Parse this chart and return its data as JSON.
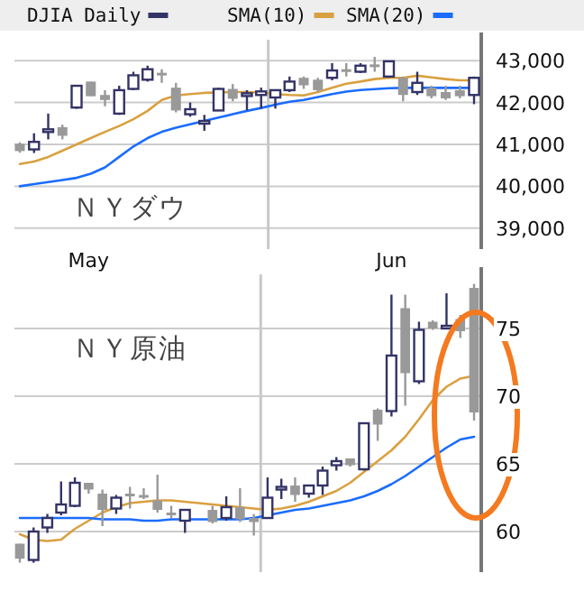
{
  "chart_data": [
    {
      "type": "candlestick",
      "title": "ＮＹダウ",
      "categories": [
        null,
        null,
        null,
        null,
        null,
        null,
        null,
        null,
        null,
        null,
        null,
        null,
        null,
        null,
        null,
        null,
        null,
        null,
        null,
        null,
        null,
        null,
        null,
        null,
        null,
        null,
        null,
        null,
        null,
        null,
        null,
        null,
        null
      ],
      "series": [
        {
          "type": "candlestick",
          "name": "DJIA Daily",
          "colors": [
            "#999999",
            "#333366",
            "#333366",
            "#999999",
            "#333366",
            "#999999",
            "#999999",
            "#333366",
            "#333366",
            "#333366",
            "#999999",
            "#999999",
            "#333366",
            "#333366",
            "#333366",
            "#999999",
            "#333366",
            "#333366",
            "#333366",
            "#333366",
            "#999999",
            "#999999",
            "#333366",
            "#999999",
            "#333366",
            "#999999",
            "#333366",
            "#999999",
            "#333366",
            "#999999",
            "#999999",
            "#999999",
            "#333366"
          ],
          "ohlc": [
            [
              41015,
              41050,
              40800,
              40840
            ],
            [
              40880,
              41265,
              40795,
              41060
            ],
            [
              41330,
              41735,
              41120,
              41360
            ],
            [
              41410,
              41470,
              41120,
              41205
            ],
            [
              41880,
              42400,
              41850,
              42400
            ],
            [
              42500,
              42500,
              42150,
              42150
            ],
            [
              42180,
              42295,
              41910,
              42060
            ],
            [
              41735,
              42400,
              41705,
              42295
            ],
            [
              42325,
              42735,
              42295,
              42650
            ],
            [
              42545,
              42880,
              42500,
              42795
            ],
            [
              42710,
              42795,
              42470,
              42690
            ],
            [
              42355,
              42470,
              41765,
              41810
            ],
            [
              41720,
              42000,
              41660,
              41840
            ],
            [
              41530,
              41705,
              41325,
              41560
            ],
            [
              41810,
              42355,
              41795,
              42325
            ],
            [
              42325,
              42440,
              42030,
              42090
            ],
            [
              42180,
              42295,
              41810,
              42220
            ],
            [
              42180,
              42355,
              41855,
              42265
            ],
            [
              42120,
              42295,
              41855,
              42295
            ],
            [
              42295,
              42620,
              42250,
              42500
            ],
            [
              42590,
              42620,
              42325,
              42410
            ],
            [
              42545,
              42590,
              42250,
              42295
            ],
            [
              42590,
              42940,
              42530,
              42765
            ],
            [
              42795,
              42940,
              42620,
              42765
            ],
            [
              42735,
              42940,
              42705,
              42880
            ],
            [
              42910,
              43090,
              42735,
              42880
            ],
            [
              42620,
              42985,
              42590,
              42985
            ],
            [
              42590,
              42620,
              42030,
              42180
            ],
            [
              42250,
              42735,
              42180,
              42470
            ],
            [
              42355,
              42400,
              42100,
              42150
            ],
            [
              42250,
              42400,
              42060,
              42100
            ],
            [
              42295,
              42400,
              42100,
              42150
            ],
            [
              42180,
              42620,
              41960,
              42590
            ]
          ]
        },
        {
          "type": "line",
          "name": "SMA(10)",
          "color": "#d9a040",
          "values": [
            40530,
            40590,
            40700,
            40850,
            41000,
            41150,
            41300,
            41440,
            41600,
            41800,
            42060,
            42170,
            42200,
            42230,
            42240,
            42250,
            42250,
            42240,
            42200,
            42180,
            42170,
            42250,
            42350,
            42450,
            42500,
            42560,
            42590,
            42590,
            42640,
            42600,
            42560,
            42530,
            42530
          ]
        },
        {
          "type": "line",
          "name": "SMA(20)",
          "color": "#1a6cff",
          "values": [
            40000,
            40050,
            40100,
            40150,
            40200,
            40300,
            40450,
            40700,
            40950,
            41150,
            41300,
            41400,
            41480,
            41560,
            41640,
            41720,
            41800,
            41870,
            41950,
            42020,
            42060,
            42130,
            42200,
            42260,
            42300,
            42320,
            42340,
            42350,
            42350,
            42350,
            42350,
            42350,
            42350
          ]
        }
      ],
      "ylim": [
        38500,
        43500
      ],
      "yticks": [
        {
          "value": 39000,
          "label": "39,000"
        },
        {
          "value": 40000,
          "label": "40,000"
        },
        {
          "value": 41000,
          "label": "41,000"
        },
        {
          "value": 42000,
          "label": "42,000"
        },
        {
          "value": 43000,
          "label": "43,000"
        }
      ],
      "grid": "y",
      "legend": "top",
      "tick_labels": "y"
    },
    {
      "type": "candlestick",
      "title": "ＮＹ原油",
      "categories": [
        null,
        null,
        null,
        null,
        null,
        "May",
        null,
        null,
        null,
        null,
        null,
        null,
        null,
        null,
        null,
        null,
        null,
        null,
        null,
        null,
        null,
        null,
        null,
        null,
        null,
        null,
        null,
        "Jun",
        null,
        null,
        null,
        null,
        null,
        null
      ],
      "series": [
        {
          "type": "candlestick",
          "colors": [
            "#999999",
            "#333366",
            "#333366",
            "#333366",
            "#333366",
            "#999999",
            "#999999",
            "#333366",
            "#999999",
            "#999999",
            "#999999",
            "#999999",
            "#333366",
            null,
            "#999999",
            "#333366",
            "#999999",
            "#999999",
            "#333366",
            "#333366",
            "#999999",
            "#333366",
            "#333366",
            "#333366",
            "#999999",
            "#333366",
            "#999999",
            "#333366",
            "#999999",
            "#333366",
            "#999999",
            "#333366",
            "#999999",
            "#999999"
          ],
          "ohlc": [
            [
              59.1,
              59.1,
              57.7,
              58.0
            ],
            [
              57.9,
              60.3,
              57.7,
              60.0
            ],
            [
              60.3,
              61.3,
              59.9,
              61.0
            ],
            [
              61.4,
              63.7,
              61.2,
              62.0
            ],
            [
              61.9,
              64.0,
              61.8,
              63.6
            ],
            [
              63.6,
              63.6,
              62.8,
              63.1
            ],
            [
              62.8,
              63.1,
              60.4,
              61.6
            ],
            [
              61.7,
              62.7,
              61.3,
              62.5
            ],
            [
              62.8,
              63.3,
              61.7,
              62.7
            ],
            [
              62.7,
              63.2,
              62.4,
              62.5
            ],
            [
              62.3,
              64.2,
              61.4,
              61.6
            ],
            [
              61.4,
              61.9,
              61.0,
              61.2
            ],
            [
              60.8,
              61.6,
              59.9,
              61.6
            ],
            null,
            [
              61.6,
              61.9,
              60.6,
              60.7
            ],
            [
              61.0,
              62.6,
              60.8,
              61.8
            ],
            [
              61.8,
              63.2,
              60.7,
              60.9
            ],
            [
              61.0,
              61.3,
              59.7,
              60.7
            ],
            [
              61.0,
              64.0,
              61.0,
              62.5
            ],
            [
              63.1,
              63.9,
              62.4,
              63.3
            ],
            [
              63.4,
              64.0,
              62.2,
              62.7
            ],
            [
              62.8,
              63.4,
              62.5,
              63.4
            ],
            [
              63.4,
              64.8,
              62.7,
              64.5
            ],
            [
              64.9,
              65.5,
              64.5,
              65.2
            ],
            [
              65.4,
              65.4,
              64.8,
              64.9
            ],
            [
              64.6,
              68.0,
              64.5,
              68.0
            ],
            [
              69.0,
              69.1,
              66.7,
              67.9
            ],
            [
              68.9,
              77.5,
              68.5,
              73.0
            ],
            [
              76.5,
              77.5,
              69.3,
              71.7
            ],
            [
              71.1,
              75.5,
              70.9,
              74.9
            ],
            [
              75.5,
              75.6,
              74.9,
              75.0
            ],
            [
              75.1,
              77.6,
              75.1,
              75.2
            ],
            [
              75.7,
              76.0,
              74.3,
              74.8
            ],
            [
              78.0,
              78.3,
              68.2,
              68.8
            ]
          ]
        },
        {
          "type": "line",
          "color": "#d9a040",
          "values": [
            59.8,
            59.4,
            59.3,
            59.4,
            60.2,
            60.8,
            61.4,
            61.8,
            62.1,
            62.2,
            62.3,
            62.3,
            62.2,
            62.1,
            62.0,
            61.9,
            61.8,
            61.7,
            61.6,
            61.7,
            61.9,
            62.2,
            62.6,
            63.0,
            63.6,
            64.4,
            65.2,
            66.0,
            67.0,
            68.3,
            69.7,
            70.7,
            71.3,
            71.5
          ]
        },
        {
          "type": "line",
          "color": "#1a6cff",
          "values": [
            61.0,
            61.0,
            61.0,
            61.0,
            61.0,
            61.0,
            60.9,
            60.9,
            60.9,
            60.8,
            60.8,
            60.9,
            60.9,
            60.9,
            60.9,
            60.9,
            60.9,
            61.0,
            61.2,
            61.4,
            61.6,
            61.7,
            61.9,
            62.1,
            62.3,
            62.6,
            63.0,
            63.5,
            64.1,
            64.8,
            65.5,
            66.2,
            66.8,
            67.0
          ]
        }
      ],
      "ylim": [
        57,
        79
      ],
      "yticks": [
        60,
        65,
        70,
        75
      ],
      "grid": "y"
    }
  ]
}
